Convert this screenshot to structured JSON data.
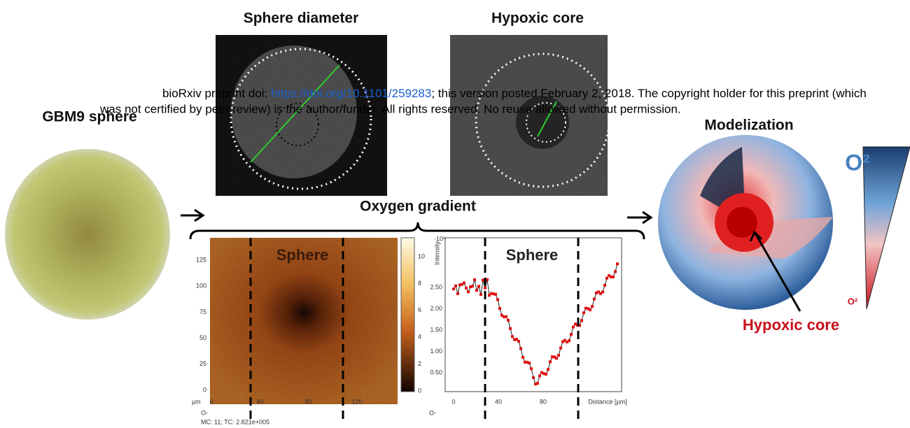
{
  "header": {
    "line1_prefix": "bioRxiv preprint doi: ",
    "link": "https://doi.org/10.1101/259283",
    "line1_suffix": "; this version posted February 2, 2018. The copyright holder for this preprint (which",
    "line2": "was not certified by peer review) is the author/funder. All rights reserved. No reuse allowed without permission."
  },
  "figure": {
    "panel_labels": {
      "gbm9": "GBM9 sphere",
      "diameter": "Sphere diameter",
      "hypoxic": "Hypoxic core",
      "gradient": "Oxygen gradient",
      "model": "Modelization"
    },
    "heatmap": {
      "label": "Sphere",
      "yticks": [
        "125",
        "100",
        "75",
        "50",
        "25",
        "0"
      ],
      "unit": "µm",
      "xticks": [
        "0",
        "40",
        "80",
        "120"
      ],
      "colorbar_ticks": [
        "10",
        "8",
        "6",
        "4",
        "2",
        "0"
      ],
      "footer1": "O-",
      "footer2": "MC:    11; TC: 2.821e+005"
    },
    "profile": {
      "label": "Sphere",
      "yticks": [
        "2.50",
        "2.00",
        "1.50",
        "1.00",
        "0.50"
      ],
      "scale": "·10²",
      "y_label": "Intensity",
      "xticks": [
        "0",
        "40",
        "80"
      ],
      "x_label": "Distance [µm]",
      "footer": "O-"
    },
    "model": {
      "o2_high": "O²",
      "o2_low": "O²",
      "core_label": "Hypoxic core"
    }
  }
}
